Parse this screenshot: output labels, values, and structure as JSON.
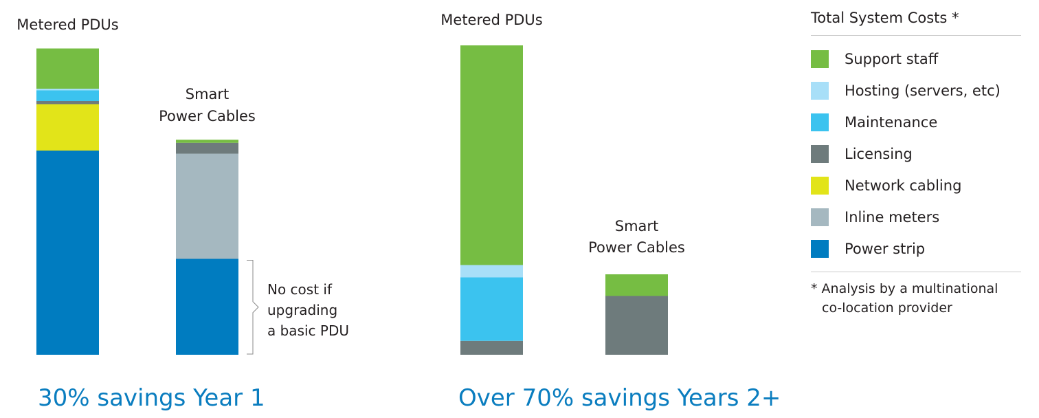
{
  "legend": {
    "title": "Total System Costs *",
    "items": [
      {
        "label": "Support staff",
        "color": "#76bd43"
      },
      {
        "label": "Hosting (servers, etc)",
        "color": "#a8dff8"
      },
      {
        "label": "Maintenance",
        "color": "#3bc3ef"
      },
      {
        "label": "Licensing",
        "color": "#6e7b7c"
      },
      {
        "label": "Network cabling",
        "color": "#e2e419"
      },
      {
        "label": "Inline meters",
        "color": "#a5b8c0"
      },
      {
        "label": "Power strip",
        "color": "#007cc0"
      }
    ],
    "footnote_line1": "* Analysis by a multinational",
    "footnote_line2": "co-location provider"
  },
  "chart_data": [
    {
      "type": "bar",
      "stacked": true,
      "title": "30% savings Year 1",
      "categories": [
        "Metered PDUs",
        "Smart\nPower Cables"
      ],
      "series": [
        {
          "name": "Power strip",
          "color": "#007cc0",
          "values": [
            66,
            31
          ]
        },
        {
          "name": "Inline meters",
          "color": "#a5b8c0",
          "values": [
            0,
            34
          ]
        },
        {
          "name": "Network cabling",
          "color": "#e2e419",
          "values": [
            15,
            0
          ]
        },
        {
          "name": "Licensing",
          "color": "#6e7b7c",
          "values": [
            1,
            3.5
          ]
        },
        {
          "name": "Maintenance",
          "color": "#3bc3ef",
          "values": [
            3.5,
            0
          ]
        },
        {
          "name": "Hosting (servers, etc)",
          "color": "#a8dff8",
          "values": [
            0.5,
            0
          ]
        },
        {
          "name": "Support staff",
          "color": "#76bd43",
          "values": [
            13,
            1
          ]
        }
      ],
      "annotation": "No cost if\nupgrading\na basic PDU",
      "annotation_category": "Smart\nPower Cables",
      "annotation_series": "Power strip",
      "grid": false
    },
    {
      "type": "bar",
      "stacked": true,
      "title": "Over 70% savings Years 2+",
      "categories": [
        "Metered PDUs",
        "Smart\nPower Cables"
      ],
      "series": [
        {
          "name": "Power strip",
          "color": "#007cc0",
          "values": [
            0,
            0
          ]
        },
        {
          "name": "Inline meters",
          "color": "#a5b8c0",
          "values": [
            0,
            0
          ]
        },
        {
          "name": "Network cabling",
          "color": "#e2e419",
          "values": [
            0,
            0
          ]
        },
        {
          "name": "Licensing",
          "color": "#6e7b7c",
          "values": [
            4.5,
            19
          ]
        },
        {
          "name": "Maintenance",
          "color": "#3bc3ef",
          "values": [
            20.5,
            0
          ]
        },
        {
          "name": "Hosting (servers, etc)",
          "color": "#a8dff8",
          "values": [
            4,
            0
          ]
        },
        {
          "name": "Support staff",
          "color": "#76bd43",
          "values": [
            71,
            7
          ]
        }
      ],
      "grid": false
    }
  ]
}
